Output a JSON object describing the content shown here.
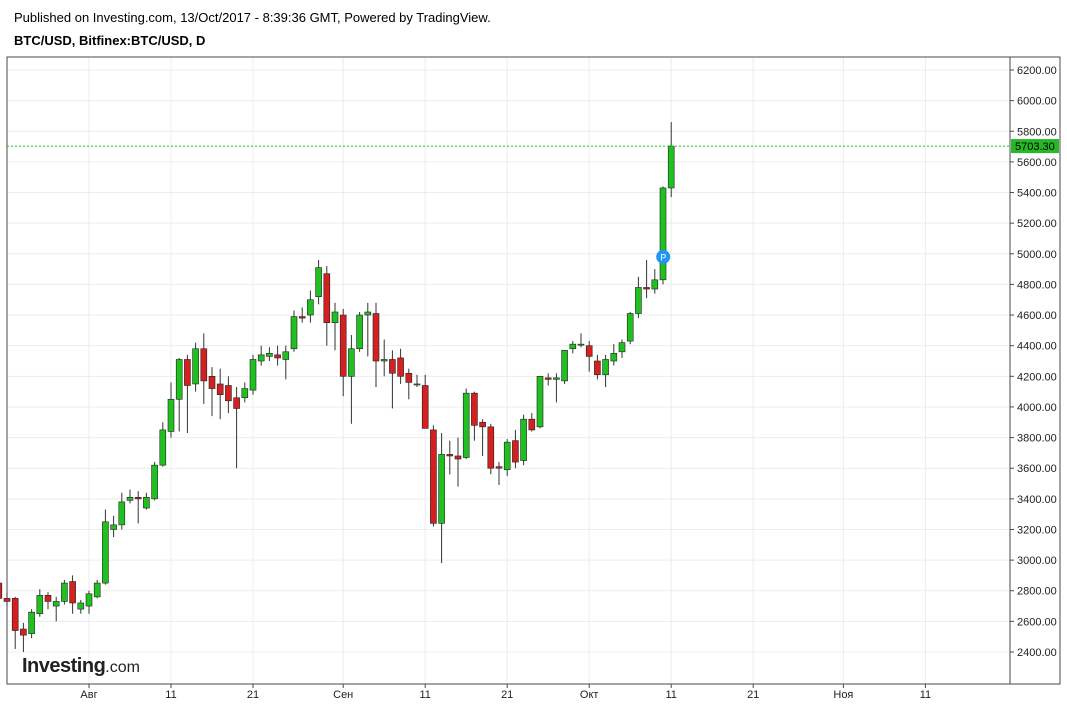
{
  "header": {
    "published": "Published on Investing.com, 13/Oct/2017 - 8:39:36 GMT, Powered by TradingView.",
    "symbol": "BTC/USD, Bitfinex:BTC/USD, D"
  },
  "logo": {
    "main": "Investing",
    "suffix": ".com"
  },
  "chart_data": {
    "type": "candlestick",
    "title": "BTC/USD, Bitfinex:BTC/USD, D",
    "y_axis": {
      "ylim": [
        2200,
        6300
      ],
      "tick_labels": [
        "6200.00",
        "6000.00",
        "5800.00",
        "5600.00",
        "5400.00",
        "5200.00",
        "5000.00",
        "4800.00",
        "4600.00",
        "4400.00",
        "4200.00",
        "4000.00",
        "3800.00",
        "3600.00",
        "3400.00",
        "3200.00",
        "3000.00",
        "2800.00",
        "2600.00",
        "2400.00"
      ],
      "position": "right"
    },
    "x_axis": {
      "tick_labels": [
        {
          "label": "Авг",
          "date": "2017-08-01"
        },
        {
          "label": "11",
          "date": "2017-08-11"
        },
        {
          "label": "21",
          "date": "2017-08-21"
        },
        {
          "label": "Сен",
          "date": "2017-09-01"
        },
        {
          "label": "11",
          "date": "2017-09-11"
        },
        {
          "label": "21",
          "date": "2017-09-21"
        },
        {
          "label": "Окт",
          "date": "2017-10-01"
        },
        {
          "label": "11",
          "date": "2017-10-11"
        },
        {
          "label": "21",
          "date": "2017-10-21"
        },
        {
          "label": "Ноя",
          "date": "2017-11-01"
        },
        {
          "label": "11",
          "date": "2017-11-11"
        }
      ]
    },
    "last_price": {
      "label": "5703.30",
      "value": 5703.3
    },
    "marker": {
      "label": "P",
      "date": "2017-10-11",
      "value": 4980
    },
    "grid": true,
    "colors": {
      "up": "#20c020",
      "down": "#d42020",
      "price_line": "#26b826",
      "grid": "#ececec",
      "marker": "#2196f3"
    },
    "candles": [
      {
        "date": "2017-07-19",
        "open": 2880,
        "high": 2920,
        "low": 2620,
        "close": 2660
      },
      {
        "date": "2017-07-20",
        "open": 2660,
        "high": 2900,
        "low": 2640,
        "close": 2860
      },
      {
        "date": "2017-07-21",
        "open": 2850,
        "high": 2870,
        "low": 2680,
        "close": 2750
      },
      {
        "date": "2017-07-22",
        "open": 2750,
        "high": 2790,
        "low": 2700,
        "close": 2730
      },
      {
        "date": "2017-07-23",
        "open": 2750,
        "high": 2760,
        "low": 2420,
        "close": 2540
      },
      {
        "date": "2017-07-24",
        "open": 2550,
        "high": 2590,
        "low": 2400,
        "close": 2510
      },
      {
        "date": "2017-07-25",
        "open": 2520,
        "high": 2680,
        "low": 2490,
        "close": 2660
      },
      {
        "date": "2017-07-26",
        "open": 2650,
        "high": 2810,
        "low": 2630,
        "close": 2770
      },
      {
        "date": "2017-07-27",
        "open": 2770,
        "high": 2790,
        "low": 2680,
        "close": 2730
      },
      {
        "date": "2017-07-28",
        "open": 2700,
        "high": 2760,
        "low": 2600,
        "close": 2730
      },
      {
        "date": "2017-07-29",
        "open": 2730,
        "high": 2870,
        "low": 2710,
        "close": 2850
      },
      {
        "date": "2017-07-30",
        "open": 2860,
        "high": 2900,
        "low": 2650,
        "close": 2720
      },
      {
        "date": "2017-07-31",
        "open": 2680,
        "high": 2740,
        "low": 2650,
        "close": 2720
      },
      {
        "date": "2017-08-01",
        "open": 2700,
        "high": 2800,
        "low": 2650,
        "close": 2780
      },
      {
        "date": "2017-08-02",
        "open": 2760,
        "high": 2870,
        "low": 2750,
        "close": 2850
      },
      {
        "date": "2017-08-03",
        "open": 2850,
        "high": 3330,
        "low": 2840,
        "close": 3250
      },
      {
        "date": "2017-08-04",
        "open": 3200,
        "high": 3290,
        "low": 3150,
        "close": 3230
      },
      {
        "date": "2017-08-05",
        "open": 3230,
        "high": 3440,
        "low": 3200,
        "close": 3380
      },
      {
        "date": "2017-08-06",
        "open": 3390,
        "high": 3460,
        "low": 3370,
        "close": 3410
      },
      {
        "date": "2017-08-07",
        "open": 3410,
        "high": 3450,
        "low": 3240,
        "close": 3400
      },
      {
        "date": "2017-08-08",
        "open": 3340,
        "high": 3440,
        "low": 3330,
        "close": 3410
      },
      {
        "date": "2017-08-09",
        "open": 3400,
        "high": 3640,
        "low": 3390,
        "close": 3620
      },
      {
        "date": "2017-08-10",
        "open": 3620,
        "high": 3900,
        "low": 3610,
        "close": 3850
      },
      {
        "date": "2017-08-11",
        "open": 3840,
        "high": 4160,
        "low": 3800,
        "close": 4050
      },
      {
        "date": "2017-08-12",
        "open": 4050,
        "high": 4320,
        "low": 3840,
        "close": 4310
      },
      {
        "date": "2017-08-13",
        "open": 4310,
        "high": 4340,
        "low": 3830,
        "close": 4140
      },
      {
        "date": "2017-08-14",
        "open": 4150,
        "high": 4420,
        "low": 4100,
        "close": 4380
      },
      {
        "date": "2017-08-15",
        "open": 4380,
        "high": 4480,
        "low": 4020,
        "close": 4170
      },
      {
        "date": "2017-08-16",
        "open": 4200,
        "high": 4260,
        "low": 3940,
        "close": 4120
      },
      {
        "date": "2017-08-17",
        "open": 4150,
        "high": 4250,
        "low": 3920,
        "close": 4080
      },
      {
        "date": "2017-08-18",
        "open": 4140,
        "high": 4200,
        "low": 3960,
        "close": 4040
      },
      {
        "date": "2017-08-19",
        "open": 4060,
        "high": 4130,
        "low": 3600,
        "close": 3990
      },
      {
        "date": "2017-08-20",
        "open": 4060,
        "high": 4160,
        "low": 4030,
        "close": 4120
      },
      {
        "date": "2017-08-21",
        "open": 4110,
        "high": 4340,
        "low": 4080,
        "close": 4310
      },
      {
        "date": "2017-08-22",
        "open": 4300,
        "high": 4400,
        "low": 4270,
        "close": 4340
      },
      {
        "date": "2017-08-23",
        "open": 4330,
        "high": 4390,
        "low": 4300,
        "close": 4350
      },
      {
        "date": "2017-08-24",
        "open": 4340,
        "high": 4400,
        "low": 4270,
        "close": 4320
      },
      {
        "date": "2017-08-25",
        "open": 4310,
        "high": 4400,
        "low": 4180,
        "close": 4360
      },
      {
        "date": "2017-08-26",
        "open": 4380,
        "high": 4630,
        "low": 4360,
        "close": 4590
      },
      {
        "date": "2017-08-27",
        "open": 4590,
        "high": 4650,
        "low": 4550,
        "close": 4580
      },
      {
        "date": "2017-08-28",
        "open": 4600,
        "high": 4760,
        "low": 4550,
        "close": 4700
      },
      {
        "date": "2017-08-29",
        "open": 4720,
        "high": 4960,
        "low": 4670,
        "close": 4910
      },
      {
        "date": "2017-08-30",
        "open": 4870,
        "high": 4920,
        "low": 4400,
        "close": 4550
      },
      {
        "date": "2017-08-31",
        "open": 4550,
        "high": 4680,
        "low": 4370,
        "close": 4620
      },
      {
        "date": "2017-09-01",
        "open": 4600,
        "high": 4640,
        "low": 4070,
        "close": 4200
      },
      {
        "date": "2017-09-02",
        "open": 4200,
        "high": 4470,
        "low": 3890,
        "close": 4380
      },
      {
        "date": "2017-09-03",
        "open": 4380,
        "high": 4620,
        "low": 4360,
        "close": 4600
      },
      {
        "date": "2017-09-04",
        "open": 4600,
        "high": 4680,
        "low": 4330,
        "close": 4620
      },
      {
        "date": "2017-09-05",
        "open": 4610,
        "high": 4680,
        "low": 4130,
        "close": 4300
      },
      {
        "date": "2017-09-06",
        "open": 4300,
        "high": 4440,
        "low": 4200,
        "close": 4310
      },
      {
        "date": "2017-09-07",
        "open": 4310,
        "high": 4370,
        "low": 3990,
        "close": 4220
      },
      {
        "date": "2017-09-08",
        "open": 4320,
        "high": 4380,
        "low": 4150,
        "close": 4200
      },
      {
        "date": "2017-09-09",
        "open": 4220,
        "high": 4250,
        "low": 4050,
        "close": 4160
      },
      {
        "date": "2017-09-10",
        "open": 4150,
        "high": 4210,
        "low": 4130,
        "close": 4150
      },
      {
        "date": "2017-09-11",
        "open": 4140,
        "high": 4210,
        "low": 3890,
        "close": 3860
      },
      {
        "date": "2017-09-12",
        "open": 3850,
        "high": 3880,
        "low": 3220,
        "close": 3240
      },
      {
        "date": "2017-09-13",
        "open": 3240,
        "high": 3830,
        "low": 2980,
        "close": 3690
      },
      {
        "date": "2017-09-14",
        "open": 3690,
        "high": 3780,
        "low": 3560,
        "close": 3680
      },
      {
        "date": "2017-09-15",
        "open": 3680,
        "high": 3800,
        "low": 3480,
        "close": 3660
      },
      {
        "date": "2017-09-16",
        "open": 3670,
        "high": 4120,
        "low": 3660,
        "close": 4090
      },
      {
        "date": "2017-09-17",
        "open": 4090,
        "high": 4100,
        "low": 3780,
        "close": 3880
      },
      {
        "date": "2017-09-18",
        "open": 3900,
        "high": 3920,
        "low": 3680,
        "close": 3870
      },
      {
        "date": "2017-09-19",
        "open": 3870,
        "high": 3890,
        "low": 3560,
        "close": 3600
      },
      {
        "date": "2017-09-20",
        "open": 3610,
        "high": 3640,
        "low": 3490,
        "close": 3600
      },
      {
        "date": "2017-09-21",
        "open": 3590,
        "high": 3790,
        "low": 3550,
        "close": 3770
      },
      {
        "date": "2017-09-22",
        "open": 3780,
        "high": 3850,
        "low": 3600,
        "close": 3640
      },
      {
        "date": "2017-09-23",
        "open": 3650,
        "high": 3950,
        "low": 3620,
        "close": 3920
      },
      {
        "date": "2017-09-24",
        "open": 3920,
        "high": 3960,
        "low": 3840,
        "close": 3850
      },
      {
        "date": "2017-09-25",
        "open": 3870,
        "high": 4200,
        "low": 3860,
        "close": 4200
      },
      {
        "date": "2017-09-26",
        "open": 4190,
        "high": 4220,
        "low": 4140,
        "close": 4180
      },
      {
        "date": "2017-09-27",
        "open": 4180,
        "high": 4220,
        "low": 4030,
        "close": 4190
      },
      {
        "date": "2017-09-28",
        "open": 4170,
        "high": 4370,
        "low": 4150,
        "close": 4370
      },
      {
        "date": "2017-09-29",
        "open": 4380,
        "high": 4430,
        "low": 4350,
        "close": 4410
      },
      {
        "date": "2017-09-30",
        "open": 4410,
        "high": 4480,
        "low": 4390,
        "close": 4410
      },
      {
        "date": "2017-10-01",
        "open": 4400,
        "high": 4430,
        "low": 4230,
        "close": 4330
      },
      {
        "date": "2017-10-02",
        "open": 4300,
        "high": 4340,
        "low": 4180,
        "close": 4210
      },
      {
        "date": "2017-10-03",
        "open": 4210,
        "high": 4340,
        "low": 4130,
        "close": 4310
      },
      {
        "date": "2017-10-04",
        "open": 4300,
        "high": 4410,
        "low": 4270,
        "close": 4350
      },
      {
        "date": "2017-10-05",
        "open": 4360,
        "high": 4440,
        "low": 4320,
        "close": 4420
      },
      {
        "date": "2017-10-06",
        "open": 4430,
        "high": 4620,
        "low": 4410,
        "close": 4610
      },
      {
        "date": "2017-10-07",
        "open": 4610,
        "high": 4850,
        "low": 4580,
        "close": 4780
      },
      {
        "date": "2017-10-08",
        "open": 4780,
        "high": 4960,
        "low": 4710,
        "close": 4770
      },
      {
        "date": "2017-10-09",
        "open": 4770,
        "high": 4900,
        "low": 4740,
        "close": 4830
      },
      {
        "date": "2017-10-10",
        "open": 4830,
        "high": 5440,
        "low": 4800,
        "close": 5430
      },
      {
        "date": "2017-10-11",
        "open": 5430,
        "high": 5860,
        "low": 5370,
        "close": 5703.3
      }
    ]
  }
}
